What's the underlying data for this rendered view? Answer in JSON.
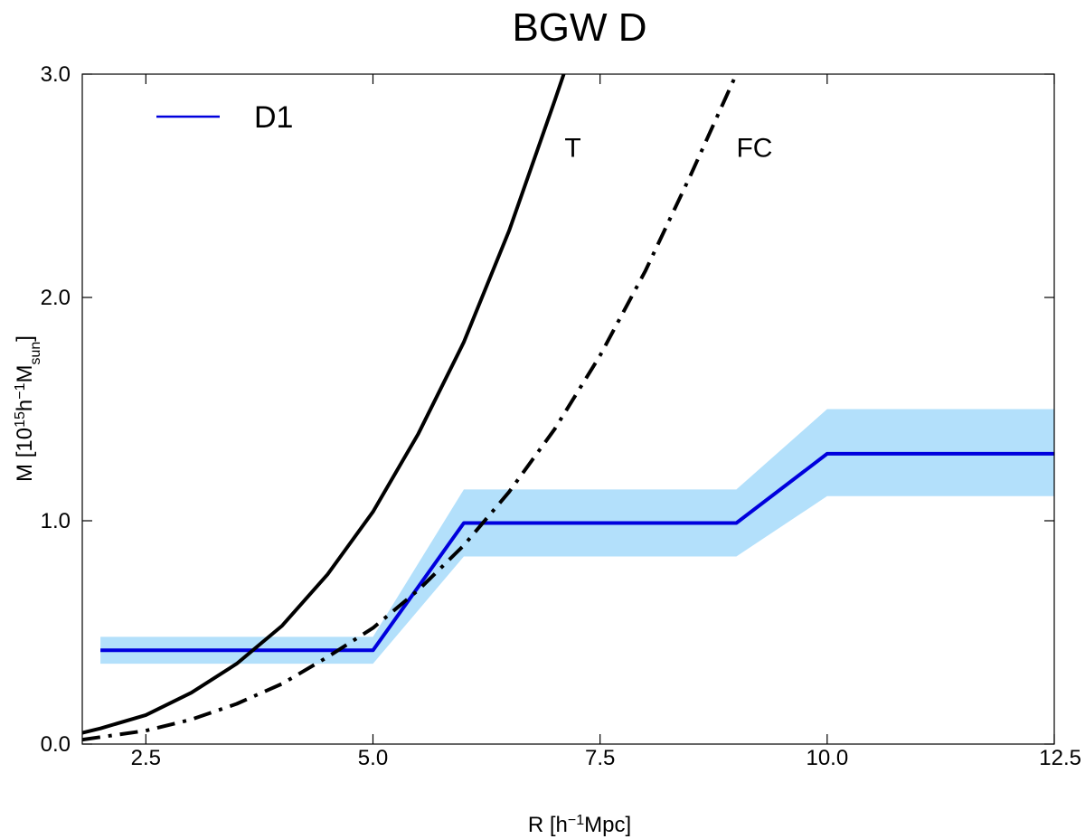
{
  "chart_data": {
    "type": "line",
    "title": "BGW D",
    "xlabel": {
      "prefix": "R [h",
      "sup": "−1",
      "suffix": "Mpc]"
    },
    "ylabel": {
      "prefix": "M [10",
      "sup1": "15",
      "mid": "h",
      "sup2": "−1",
      "base": "M",
      "sub": "sun",
      "suffix": "]"
    },
    "xlim": [
      1.8,
      12.5
    ],
    "ylim": [
      0.0,
      3.0
    ],
    "x_ticks": [
      {
        "value": 2.5,
        "label": "2.5"
      },
      {
        "value": 5.0,
        "label": "5.0"
      },
      {
        "value": 7.5,
        "label": "7.5"
      },
      {
        "value": 10.0,
        "label": "10.0"
      },
      {
        "value": 12.5,
        "label": "12.5"
      }
    ],
    "y_ticks": [
      {
        "value": 0.0,
        "label": "0.0"
      },
      {
        "value": 1.0,
        "label": "1.0"
      },
      {
        "value": 2.0,
        "label": "2.0"
      },
      {
        "value": 3.0,
        "label": "3.0"
      }
    ],
    "band": {
      "name": "D1 uncertainty",
      "color": "#b3e0fb",
      "x": [
        2.0,
        5.0,
        6.0,
        9.0,
        10.0,
        12.5
      ],
      "lower": [
        0.36,
        0.36,
        0.84,
        0.84,
        1.11,
        1.11
      ],
      "upper": [
        0.48,
        0.48,
        1.14,
        1.14,
        1.5,
        1.5
      ]
    },
    "series": [
      {
        "name": "D1",
        "style": "solid",
        "color": "#0000dd",
        "x": [
          2.0,
          5.0,
          6.0,
          9.0,
          10.0,
          12.5
        ],
        "y": [
          0.42,
          0.42,
          0.99,
          0.99,
          1.3,
          1.3
        ]
      },
      {
        "name": "T",
        "style": "solid",
        "color": "#000000",
        "x": [
          1.8,
          2.0,
          2.5,
          3.0,
          3.5,
          4.0,
          4.5,
          5.0,
          5.5,
          6.0,
          6.5,
          7.0,
          7.1
        ],
        "y": [
          0.05,
          0.07,
          0.13,
          0.23,
          0.36,
          0.53,
          0.76,
          1.04,
          1.39,
          1.8,
          2.3,
          2.88,
          3.0
        ]
      },
      {
        "name": "FC",
        "style": "dashdot",
        "color": "#000000",
        "x": [
          1.8,
          2.5,
          3.0,
          3.5,
          4.0,
          4.5,
          5.0,
          5.5,
          6.0,
          6.5,
          7.0,
          7.5,
          8.0,
          8.5,
          9.0
        ],
        "y": [
          0.02,
          0.06,
          0.11,
          0.18,
          0.27,
          0.39,
          0.52,
          0.69,
          0.89,
          1.13,
          1.41,
          1.74,
          2.12,
          2.55,
          3.0
        ]
      }
    ],
    "legend": {
      "position": "top-left",
      "entries": [
        {
          "label": "D1",
          "color": "#0000dd"
        }
      ]
    },
    "annotations": [
      {
        "text": "T",
        "x": 7.2,
        "y": 2.63
      },
      {
        "text": "FC",
        "x": 9.2,
        "y": 2.63
      }
    ]
  }
}
